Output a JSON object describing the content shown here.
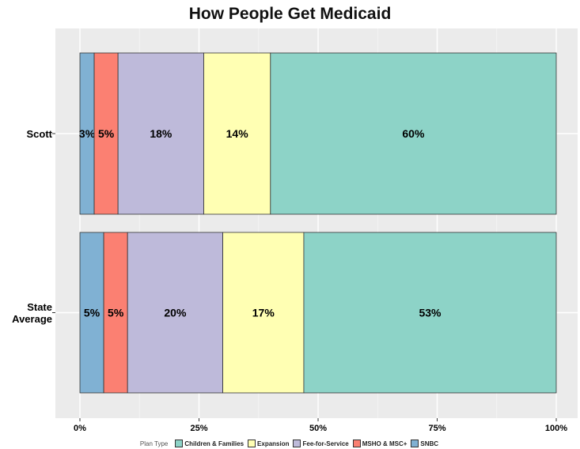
{
  "chart_data": {
    "type": "bar",
    "orientation": "horizontal",
    "stacked": true,
    "title": "How People Get Medicaid",
    "categories": [
      "Scott",
      "State\nAverage"
    ],
    "series": [
      {
        "name": "SNBC",
        "color": "#80b1d3",
        "values": [
          3,
          5
        ],
        "labels": [
          "3%",
          "5%"
        ]
      },
      {
        "name": "MSHO & MSC+",
        "color": "#fb8072",
        "values": [
          5,
          5
        ],
        "labels": [
          "5%",
          "5%"
        ]
      },
      {
        "name": "Fee-for-Service",
        "color": "#bebada",
        "values": [
          18,
          20
        ],
        "labels": [
          "18%",
          "20%"
        ]
      },
      {
        "name": "Expansion",
        "color": "#ffffb3",
        "values": [
          14,
          17
        ],
        "labels": [
          "14%",
          "17%"
        ]
      },
      {
        "name": "Children & Families",
        "color": "#8dd3c7",
        "values": [
          60,
          53
        ],
        "labels": [
          "60%",
          "53%"
        ]
      }
    ],
    "x_ticks": [
      "0%",
      "25%",
      "50%",
      "75%",
      "100%"
    ],
    "xlim": [
      0,
      100
    ],
    "grid": true,
    "legend": {
      "position": "bottom",
      "title": "Plan Type",
      "entries": [
        "Children & Families",
        "Expansion",
        "Fee-for-Service",
        "MSHO & MSC+",
        "SNBC"
      ]
    }
  }
}
